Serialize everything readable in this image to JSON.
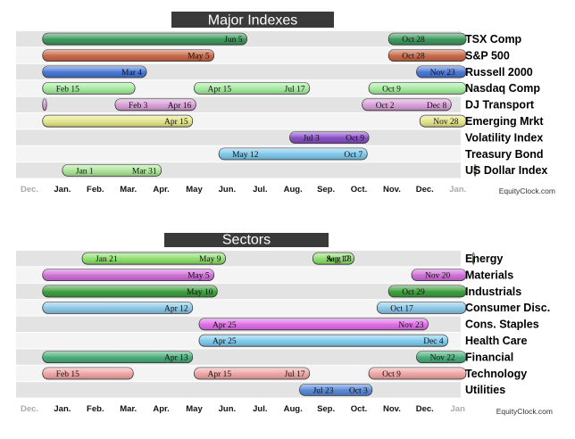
{
  "chart_data": [
    {
      "type": "gantt",
      "title": "Major Indexes",
      "months": [
        "Dec.",
        "Jan.",
        "Feb.",
        "Mar.",
        "Apr.",
        "May",
        "Jun.",
        "Jul.",
        "Aug.",
        "Sep.",
        "Oct.",
        "Nov.",
        "Dec.",
        "Jan."
      ],
      "watermark": "EquityClock.com",
      "rows": [
        {
          "label": "TSX Comp",
          "periods": [
            {
              "color": "#3e9a5e",
              "start_text": "",
              "end_text": "Jun 5",
              "start": -0.6,
              "end": 5.6
            },
            {
              "color": "#3e9a5e",
              "start_text": "Oct 28",
              "end_text": "",
              "start": 9.9,
              "end": 12.5
            }
          ]
        },
        {
          "label": "S&P 500",
          "periods": [
            {
              "color": "#c96a4a",
              "start_text": "",
              "end_text": "May 5",
              "start": -0.6,
              "end": 4.6
            },
            {
              "color": "#c96a4a",
              "start_text": "Oct 28",
              "end_text": "",
              "start": 9.9,
              "end": 12.5
            }
          ]
        },
        {
          "label": "Russell 2000",
          "periods": [
            {
              "color": "#4a78d6",
              "start_text": "",
              "end_text": "Mar 4",
              "start": -0.6,
              "end": 2.55
            },
            {
              "color": "#4a78d6",
              "start_text": "Nov 23",
              "end_text": "",
              "start": 10.75,
              "end": 12.5
            }
          ]
        },
        {
          "label": "Nasdaq Comp",
          "periods": [
            {
              "color": "#a6eca0",
              "start_text": "Feb 15",
              "end_text": "",
              "start": -0.6,
              "end": 2.2
            },
            {
              "color": "#a6eca0",
              "start_text": "Apr 15",
              "end_text": "Jul 17",
              "start": 4.0,
              "end": 7.5
            },
            {
              "color": "#a6eca0",
              "start_text": "Oct 9",
              "end_text": "",
              "start": 9.3,
              "end": 12.5
            }
          ]
        },
        {
          "label": "DJ Transport",
          "periods": [
            {
              "color": "#d9a0d9",
              "start_text": "",
              "end_text": "",
              "start": -0.6,
              "end": -0.48
            },
            {
              "color": "#d9a0d9",
              "start_text": "Feb 3",
              "end_text": "Apr 16",
              "start": 1.6,
              "end": 4.05
            },
            {
              "color": "#d9a0d9",
              "start_text": "Oct 2",
              "end_text": "Dec 8",
              "start": 9.1,
              "end": 11.8
            }
          ]
        },
        {
          "label": "Emerging Mrkt",
          "periods": [
            {
              "color": "#e6e68a",
              "start_text": "",
              "end_text": "Apr 15",
              "start": -0.6,
              "end": 3.95
            },
            {
              "color": "#e6e68a",
              "start_text": "Nov 28",
              "end_text": "",
              "start": 10.85,
              "end": 12.5
            }
          ]
        },
        {
          "label": "Volatility Index",
          "periods": [
            {
              "color": "#8a50c8",
              "start_text": "Jul 3",
              "end_text": "Oct 9",
              "start": 6.9,
              "end": 9.3
            }
          ]
        },
        {
          "label": "Treasury Bond",
          "periods": [
            {
              "color": "#7fc8ea",
              "start_text": "May 12",
              "end_text": "Oct 7",
              "start": 4.75,
              "end": 9.25
            }
          ]
        },
        {
          "label": "US Dollar Index",
          "periods": [
            {
              "color": "#aee69c",
              "start_text": "Jan 1",
              "end_text": "Mar 31",
              "start": 0.0,
              "end": 3.0
            },
            {
              "color": "#aee69c",
              "start_text": "",
              "end_text": "",
              "start": 12.5,
              "end": 12.8
            }
          ]
        }
      ]
    },
    {
      "type": "gantt",
      "title": "Sectors",
      "months": [
        "Dec.",
        "Jan.",
        "Feb.",
        "Mar.",
        "Apr.",
        "May",
        "Jun.",
        "Jul.",
        "Aug.",
        "Sep.",
        "Oct.",
        "Nov.",
        "Dec.",
        "Jan"
      ],
      "watermark": "EquityClock.com",
      "rows": [
        {
          "label": "Energy",
          "periods": [
            {
              "color": "#8ee06e",
              "start_text": "Jan 21",
              "end_text": "May 9",
              "start": 0.6,
              "end": 4.95
            },
            {
              "color": "#8ee06e",
              "start_text": "Aug 18",
              "end_text": "Sep 17",
              "start": 7.6,
              "end": 8.85
            },
            {
              "color": "#8ee06e",
              "start_text": "",
              "end_text": "",
              "start": 12.45,
              "end": 12.6
            }
          ]
        },
        {
          "label": "Materials",
          "periods": [
            {
              "color": "#d070d8",
              "start_text": "",
              "end_text": "May 5",
              "start": -0.6,
              "end": 4.6
            },
            {
              "color": "#d070d8",
              "start_text": "Nov 20",
              "end_text": "",
              "start": 10.6,
              "end": 12.5
            }
          ]
        },
        {
          "label": "Industrials",
          "periods": [
            {
              "color": "#3ea03e",
              "start_text": "",
              "end_text": "May 10",
              "start": -0.6,
              "end": 4.7
            },
            {
              "color": "#3ea03e",
              "start_text": "Oct 29",
              "end_text": "",
              "start": 9.9,
              "end": 12.5
            }
          ]
        },
        {
          "label": "Consumer Disc.",
          "periods": [
            {
              "color": "#8ec8e8",
              "start_text": "",
              "end_text": "Apr 12",
              "start": -0.6,
              "end": 3.95
            },
            {
              "color": "#8ec8e8",
              "start_text": "Oct 17",
              "end_text": "",
              "start": 9.55,
              "end": 12.5
            }
          ]
        },
        {
          "label": "Cons. Staples",
          "periods": [
            {
              "color": "#e070e8",
              "start_text": "Apr 25",
              "end_text": "Nov 23",
              "start": 4.15,
              "end": 11.1
            }
          ]
        },
        {
          "label": "Health Care",
          "periods": [
            {
              "color": "#80ccee",
              "start_text": "Apr 25",
              "end_text": "Dec 4",
              "start": 4.15,
              "end": 11.7
            }
          ]
        },
        {
          "label": "Financial",
          "periods": [
            {
              "color": "#4aae7a",
              "start_text": "",
              "end_text": "Apr 13",
              "start": -0.6,
              "end": 3.95
            },
            {
              "color": "#4aae7a",
              "start_text": "Nov 22",
              "end_text": "",
              "start": 10.75,
              "end": 12.5
            }
          ]
        },
        {
          "label": "Technology",
          "periods": [
            {
              "color": "#f0a6a6",
              "start_text": "Feb 15",
              "end_text": "",
              "start": -0.6,
              "end": 2.15
            },
            {
              "color": "#f0a6a6",
              "start_text": "Apr 15",
              "end_text": "Jul 17",
              "start": 4.0,
              "end": 7.5
            },
            {
              "color": "#f0a6a6",
              "start_text": "Oct 9",
              "end_text": "",
              "start": 9.3,
              "end": 12.5
            }
          ]
        },
        {
          "label": "Utilities",
          "periods": [
            {
              "color": "#5a8ad8",
              "start_text": "Jul 23",
              "end_text": "Oct 3",
              "start": 7.2,
              "end": 9.4
            }
          ]
        }
      ]
    }
  ]
}
